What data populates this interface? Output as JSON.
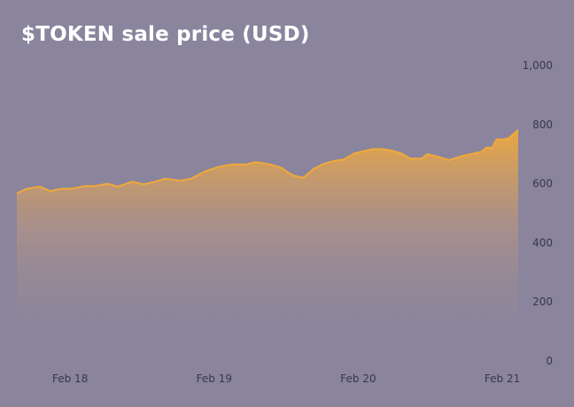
{
  "title": "$TOKEN sale price (USD)",
  "colors": {
    "background": "#8a859d",
    "line": "#f0a93a",
    "area_top": "#f0a93a",
    "title": "#ffffff",
    "ticks": "#3a3746"
  },
  "chart_data": {
    "type": "area",
    "title": "$TOKEN sale price (USD)",
    "xlabel": "",
    "ylabel": "",
    "y_axis_position": "right",
    "grid": false,
    "legend": "none",
    "xlim": [
      17.63,
      21.11
    ],
    "ylim": [
      0,
      1000
    ],
    "x_ticks": [
      {
        "value": 18,
        "label": "Feb 18"
      },
      {
        "value": 19,
        "label": "Feb 19"
      },
      {
        "value": 20,
        "label": "Feb 20"
      },
      {
        "value": 21,
        "label": "Feb 21"
      }
    ],
    "y_ticks": [
      {
        "value": 0,
        "label": "0"
      },
      {
        "value": 200,
        "label": "200"
      },
      {
        "value": 400,
        "label": "400"
      },
      {
        "value": 600,
        "label": "600"
      },
      {
        "value": 800,
        "label": "800"
      },
      {
        "value": 1000,
        "label": "1,000"
      }
    ],
    "series": [
      {
        "x": [
          17.63,
          17.7,
          17.79,
          17.86,
          17.94,
          18.01,
          18.1,
          18.17,
          18.26,
          18.33,
          18.43,
          18.51,
          18.59,
          18.66,
          18.76,
          18.84,
          18.93,
          19.03,
          19.12,
          19.22,
          19.29,
          19.39,
          19.46,
          19.55,
          19.62,
          19.69,
          19.76,
          19.83,
          19.9,
          19.97,
          20.04,
          20.1,
          20.17,
          20.25,
          20.3,
          20.36,
          20.44,
          20.48,
          20.56,
          20.63,
          20.71,
          20.78,
          20.85,
          20.89,
          20.93,
          20.96,
          21.0,
          21.04,
          21.11
        ],
        "y": [
          567,
          583,
          590,
          575,
          583,
          583,
          592,
          592,
          600,
          590,
          607,
          598,
          607,
          617,
          610,
          617,
          640,
          657,
          665,
          665,
          673,
          665,
          655,
          627,
          620,
          650,
          667,
          677,
          682,
          702,
          710,
          717,
          717,
          710,
          702,
          685,
          685,
          700,
          690,
          680,
          692,
          700,
          707,
          722,
          722,
          750,
          750,
          752,
          782
        ]
      }
    ]
  }
}
